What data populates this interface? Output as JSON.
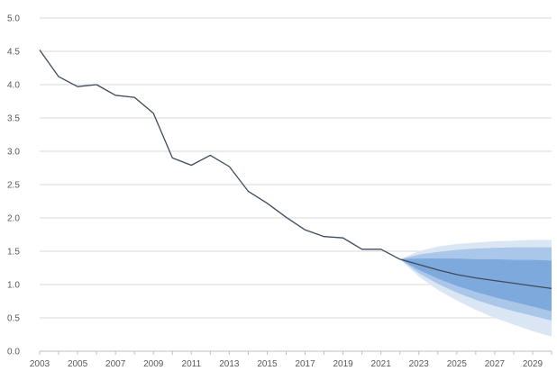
{
  "chart_data": {
    "type": "line",
    "title": "",
    "xlabel": "",
    "ylabel": "",
    "xlim": [
      2003,
      2030
    ],
    "ylim": [
      0,
      5
    ],
    "grid": "horizontal",
    "legend": "none",
    "x_tick_labels": [
      "2003",
      "2005",
      "2007",
      "2009",
      "2011",
      "2013",
      "2015",
      "2017",
      "2019",
      "2021",
      "2023",
      "2025",
      "2027",
      "2029"
    ],
    "y_tick_labels": [
      "0.0",
      "0.5",
      "1.0",
      "1.5",
      "2.0",
      "2.5",
      "3.0",
      "3.5",
      "4.0",
      "4.5",
      "5.0"
    ],
    "historical": {
      "x": [
        2003,
        2004,
        2005,
        2006,
        2007,
        2008,
        2009,
        2010,
        2011,
        2012,
        2013,
        2014,
        2015,
        2016,
        2017,
        2018,
        2019,
        2020,
        2021,
        2022
      ],
      "y": [
        4.52,
        4.12,
        3.97,
        4.0,
        3.84,
        3.81,
        3.57,
        2.9,
        2.79,
        2.94,
        2.77,
        2.4,
        2.22,
        2.01,
        1.82,
        1.72,
        1.7,
        1.53,
        1.53,
        1.38
      ]
    },
    "forecast": {
      "x": [
        2022,
        2023,
        2024,
        2025,
        2026,
        2027,
        2028,
        2029,
        2030
      ],
      "central": [
        1.38,
        1.3,
        1.22,
        1.15,
        1.1,
        1.06,
        1.02,
        0.98,
        0.94
      ],
      "bands": [
        {
          "name": "",
          "color": "#dbe6f4",
          "upper": [
            1.38,
            1.5,
            1.57,
            1.61,
            1.63,
            1.65,
            1.66,
            1.67,
            1.67
          ],
          "lower": [
            1.38,
            1.12,
            0.92,
            0.76,
            0.62,
            0.5,
            0.4,
            0.3,
            0.22
          ]
        },
        {
          "name": "",
          "color": "#aac7ea",
          "upper": [
            1.38,
            1.45,
            1.49,
            1.52,
            1.54,
            1.55,
            1.56,
            1.56,
            1.56
          ],
          "lower": [
            1.38,
            1.17,
            1.01,
            0.88,
            0.77,
            0.68,
            0.6,
            0.53,
            0.46
          ]
        },
        {
          "name": "",
          "color": "#7ea9dc",
          "upper": [
            1.38,
            1.39,
            1.39,
            1.39,
            1.38,
            1.38,
            1.37,
            1.37,
            1.36
          ],
          "lower": [
            1.38,
            1.22,
            1.09,
            0.98,
            0.89,
            0.81,
            0.74,
            0.67,
            0.6
          ]
        }
      ]
    },
    "colors": {
      "line": "#3f4a5a",
      "grid": "#d9d9d9",
      "axis": "#bfbfbf",
      "tick_text": "#595959"
    }
  }
}
